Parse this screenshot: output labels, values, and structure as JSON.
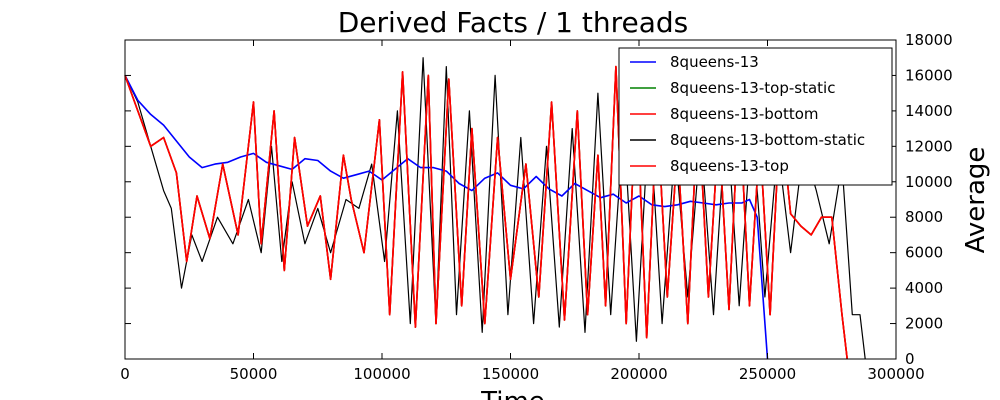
{
  "chart_data": {
    "type": "line",
    "title": "Derived Facts / 1 threads",
    "xlabel": "Time",
    "ylabel": "Average",
    "xlim": [
      0,
      300000
    ],
    "ylim": [
      0,
      18000
    ],
    "x_ticks": [
      "0",
      "50000",
      "100000",
      "150000",
      "200000",
      "250000",
      "300000"
    ],
    "y_ticks": [
      "0",
      "2000",
      "4000",
      "6000",
      "8000",
      "10000",
      "12000",
      "14000",
      "16000",
      "18000"
    ],
    "y_axis_side": "right",
    "grid": false,
    "legend_position": "top-right",
    "series": [
      {
        "name": "8queens-13",
        "color": "#0000ff",
        "x": [
          0,
          5000,
          10000,
          15000,
          20000,
          25000,
          30000,
          35000,
          40000,
          45000,
          50000,
          55000,
          60000,
          65000,
          70000,
          75000,
          80000,
          85000,
          90000,
          95000,
          100000,
          105000,
          110000,
          115000,
          120000,
          125000,
          130000,
          135000,
          140000,
          145000,
          150000,
          155000,
          160000,
          165000,
          170000,
          175000,
          180000,
          185000,
          190000,
          195000,
          200000,
          205000,
          210000,
          215000,
          220000,
          225000,
          230000,
          235000,
          240000,
          243000,
          246000,
          250000
        ],
        "y": [
          16000,
          14600,
          13800,
          13200,
          12300,
          11400,
          10800,
          11000,
          11100,
          11400,
          11600,
          11100,
          10900,
          10700,
          11300,
          11200,
          10600,
          10200,
          10400,
          10600,
          10100,
          10700,
          11300,
          10800,
          10800,
          10600,
          9900,
          9500,
          10200,
          10500,
          9800,
          9600,
          10300,
          9600,
          9200,
          9900,
          9500,
          9100,
          9300,
          8800,
          9200,
          8700,
          8600,
          8700,
          8900,
          8800,
          8700,
          8800,
          8800,
          9000,
          8000,
          0
        ]
      },
      {
        "name": "8queens-13-top-static",
        "color": "#008000",
        "x": [
          0,
          5000,
          10000,
          15000,
          20000,
          24000,
          28000,
          33000,
          38000,
          44000,
          50000,
          53000,
          58000,
          62000,
          66000,
          71000,
          76000,
          80000,
          85000,
          88000,
          93000,
          99000,
          103000,
          108000,
          113000,
          118000,
          121000,
          126000,
          131000,
          135000,
          140000,
          145000,
          150000,
          156000,
          161000,
          166000,
          171000,
          176000,
          180000,
          184000,
          187000,
          191000,
          195000,
          199000,
          203000,
          207000,
          211000,
          215000,
          219000,
          223000,
          227000,
          231000,
          235000,
          239000,
          243000,
          247000,
          251000,
          255000,
          259000,
          263000,
          267000,
          271000,
          275000,
          279000,
          281000
        ],
        "y": [
          16000,
          14000,
          12000,
          12500,
          10500,
          5500,
          9200,
          6800,
          11000,
          7000,
          14500,
          6500,
          14000,
          5000,
          12500,
          7500,
          9200,
          4500,
          11500,
          9000,
          6000,
          13500,
          2500,
          16200,
          1800,
          16000,
          2000,
          15800,
          3000,
          13000,
          2000,
          12500,
          4500,
          11000,
          3500,
          14500,
          2200,
          14000,
          2500,
          11500,
          3000,
          16500,
          2000,
          15000,
          1200,
          14000,
          3500,
          12000,
          2000,
          14500,
          3500,
          13000,
          2800,
          14500,
          3000,
          12500,
          2500,
          14000,
          8200,
          7500,
          7000,
          8000,
          8000,
          2500,
          0
        ]
      },
      {
        "name": "8queens-13-bottom",
        "color": "#ff0000",
        "x": [
          0,
          5000,
          10000,
          15000,
          20000,
          24000,
          28000,
          33000,
          38000,
          44000,
          50000,
          53000,
          58000,
          62000,
          66000,
          71000,
          76000,
          80000,
          85000,
          88000,
          93000,
          99000,
          103000,
          108000,
          113000,
          118000,
          121000,
          126000,
          131000,
          135000,
          140000,
          145000,
          150000,
          156000,
          161000,
          166000,
          171000,
          176000,
          180000,
          184000,
          187000,
          191000,
          195000,
          199000,
          203000,
          207000,
          211000,
          215000,
          219000,
          223000,
          227000,
          231000,
          235000,
          239000,
          243000,
          247000,
          251000,
          255000,
          259000,
          263000,
          267000,
          271000,
          275000,
          279000,
          281000
        ],
        "y": [
          16000,
          14000,
          12000,
          12500,
          10500,
          5500,
          9200,
          6800,
          11000,
          7000,
          14500,
          6500,
          14000,
          5000,
          12500,
          7500,
          9200,
          4500,
          11500,
          9000,
          6000,
          13500,
          2500,
          16200,
          1800,
          16000,
          2000,
          15800,
          3000,
          13000,
          2000,
          12500,
          4500,
          11000,
          3500,
          14500,
          2200,
          14000,
          2500,
          11500,
          3000,
          16500,
          2000,
          15000,
          1200,
          14000,
          3500,
          12000,
          2000,
          14500,
          3500,
          13000,
          2800,
          14500,
          3000,
          12500,
          2500,
          14000,
          8200,
          7500,
          7000,
          8000,
          8000,
          2500,
          0
        ]
      },
      {
        "name": "8queens-13-bottom-static",
        "color": "#000000",
        "x": [
          0,
          5000,
          10000,
          15000,
          18000,
          22000,
          26000,
          30000,
          36000,
          42000,
          48000,
          53000,
          57000,
          61000,
          65000,
          70000,
          75000,
          80000,
          86000,
          91000,
          96000,
          101000,
          106000,
          111000,
          116000,
          121000,
          125000,
          129000,
          134000,
          139000,
          144000,
          149000,
          154000,
          159000,
          164000,
          169000,
          174000,
          179000,
          184000,
          189000,
          194000,
          199000,
          204000,
          209000,
          214000,
          219000,
          224000,
          229000,
          234000,
          239000,
          244000,
          249000,
          254000,
          259000,
          264000,
          269000,
          274000,
          279000,
          283000,
          286000,
          288000
        ],
        "y": [
          16000,
          14500,
          12000,
          9500,
          8500,
          4000,
          7000,
          5500,
          8000,
          6500,
          9000,
          6000,
          12000,
          5500,
          10000,
          6500,
          8500,
          6000,
          9000,
          8500,
          11000,
          5500,
          14000,
          2000,
          17000,
          2000,
          16500,
          2500,
          14000,
          1500,
          16000,
          2500,
          12500,
          2000,
          12000,
          1800,
          13000,
          1500,
          15000,
          2500,
          13500,
          1000,
          14000,
          2000,
          12000,
          3500,
          12500,
          2500,
          14000,
          3000,
          13500,
          3500,
          12000,
          6000,
          12000,
          9500,
          6500,
          11000,
          2500,
          2500,
          0
        ]
      },
      {
        "name": "8queens-13-top",
        "color": "#ff0000",
        "x": [
          0,
          5000,
          10000,
          15000,
          20000,
          24000,
          28000,
          33000,
          38000,
          44000,
          50000,
          53000,
          58000,
          62000,
          66000,
          71000,
          76000,
          80000,
          85000,
          88000,
          93000,
          99000,
          103000,
          108000,
          113000,
          118000,
          121000,
          126000,
          131000,
          135000,
          140000,
          145000,
          150000,
          156000,
          161000,
          166000,
          171000,
          176000,
          180000,
          184000,
          187000,
          191000,
          195000,
          199000,
          203000,
          207000,
          211000,
          215000,
          219000,
          223000,
          227000,
          231000,
          235000,
          239000,
          243000,
          247000,
          251000,
          255000,
          259000,
          263000,
          267000,
          271000,
          275000,
          279000,
          281000
        ],
        "y": [
          16000,
          14000,
          12000,
          12500,
          10500,
          5500,
          9200,
          6800,
          11000,
          7000,
          14500,
          6500,
          14000,
          5000,
          12500,
          7500,
          9200,
          4500,
          11500,
          9000,
          6000,
          13500,
          2500,
          16200,
          1800,
          16000,
          2000,
          15800,
          3000,
          13000,
          2000,
          12500,
          4500,
          11000,
          3500,
          14500,
          2200,
          14000,
          2500,
          11500,
          3000,
          16500,
          2000,
          15000,
          1200,
          14000,
          3500,
          12000,
          2000,
          14500,
          3500,
          13000,
          2800,
          14500,
          3000,
          12500,
          2500,
          14000,
          8200,
          7500,
          7000,
          8000,
          8000,
          2500,
          0
        ]
      }
    ]
  }
}
